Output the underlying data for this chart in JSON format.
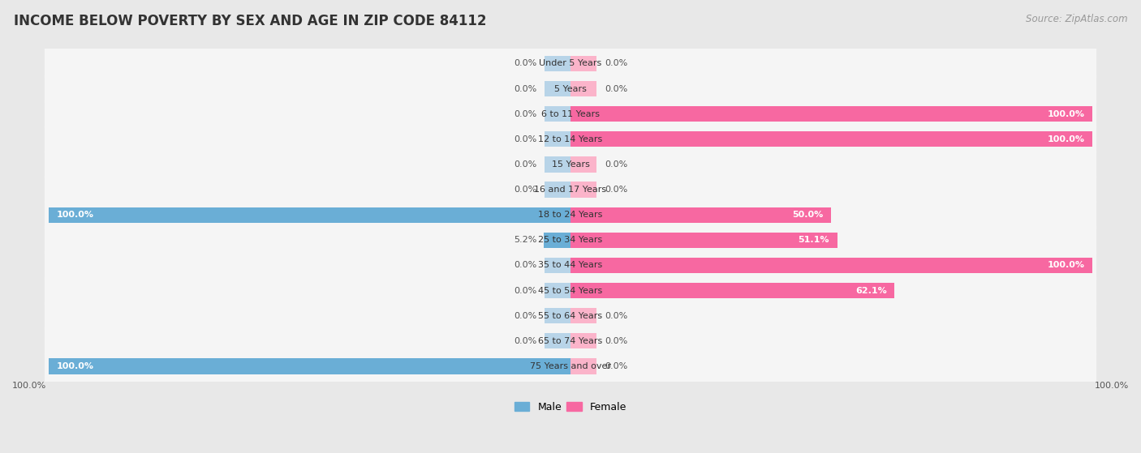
{
  "title": "INCOME BELOW POVERTY BY SEX AND AGE IN ZIP CODE 84112",
  "source": "Source: ZipAtlas.com",
  "categories": [
    "Under 5 Years",
    "5 Years",
    "6 to 11 Years",
    "12 to 14 Years",
    "15 Years",
    "16 and 17 Years",
    "18 to 24 Years",
    "25 to 34 Years",
    "35 to 44 Years",
    "45 to 54 Years",
    "55 to 64 Years",
    "65 to 74 Years",
    "75 Years and over"
  ],
  "male_values": [
    0.0,
    0.0,
    0.0,
    0.0,
    0.0,
    0.0,
    100.0,
    5.2,
    0.0,
    0.0,
    0.0,
    0.0,
    100.0
  ],
  "female_values": [
    0.0,
    0.0,
    100.0,
    100.0,
    0.0,
    0.0,
    50.0,
    51.1,
    100.0,
    62.1,
    0.0,
    0.0,
    0.0
  ],
  "male_color": "#6aaed6",
  "male_color_light": "#b8d4e8",
  "female_color": "#f768a1",
  "female_color_light": "#fbb4ca",
  "title_fontsize": 12,
  "source_fontsize": 8.5,
  "label_fontsize": 8,
  "cat_fontsize": 8,
  "legend_fontsize": 9,
  "bar_height": 0.62,
  "stub_size": 5.0,
  "max_val": 100.0
}
